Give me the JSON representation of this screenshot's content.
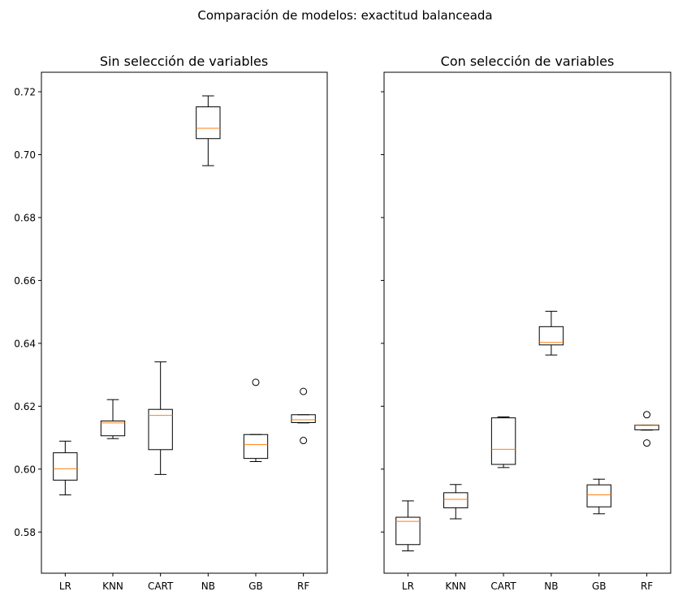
{
  "chart_data": {
    "type": "box",
    "suptitle": "Comparación de modelos: exactitud balanceada",
    "ylim": [
      0.5669,
      0.7262
    ],
    "yticks": [
      0.58,
      0.6,
      0.62,
      0.64,
      0.66,
      0.68,
      0.7,
      0.72
    ],
    "ytick_labels": [
      "0.58",
      "0.60",
      "0.62",
      "0.64",
      "0.66",
      "0.68",
      "0.70",
      "0.72"
    ],
    "sharey": true,
    "grid": false,
    "colors": {
      "box": "#000000",
      "median": "#ff7f0e",
      "flier": "#000000"
    },
    "panels": [
      {
        "title": "Sin selección de variables",
        "categories": [
          "LR",
          "KNN",
          "CART",
          "NB",
          "GB",
          "RF"
        ],
        "boxes": [
          {
            "whislo": 0.5918,
            "q1": 0.5965,
            "med": 0.6001,
            "q3": 0.6052,
            "whishi": 0.6089,
            "fliers": []
          },
          {
            "whislo": 0.6097,
            "q1": 0.6106,
            "med": 0.6147,
            "q3": 0.6153,
            "whishi": 0.6221,
            "fliers": []
          },
          {
            "whislo": 0.5983,
            "q1": 0.6062,
            "med": 0.6171,
            "q3": 0.619,
            "whishi": 0.6341,
            "fliers": []
          },
          {
            "whislo": 0.6965,
            "q1": 0.7051,
            "med": 0.7084,
            "q3": 0.7152,
            "whishi": 0.7187,
            "fliers": []
          },
          {
            "whislo": 0.6024,
            "q1": 0.6034,
            "med": 0.6078,
            "q3": 0.611,
            "whishi": 0.611,
            "fliers": [
              0.6276
            ]
          },
          {
            "whislo": 0.6147,
            "q1": 0.6148,
            "med": 0.6157,
            "q3": 0.6173,
            "whishi": 0.6173,
            "fliers": [
              0.6247,
              0.6091
            ]
          }
        ]
      },
      {
        "title": "Con selección de variables",
        "categories": [
          "LR",
          "KNN",
          "CART",
          "NB",
          "GB",
          "RF"
        ],
        "boxes": [
          {
            "whislo": 0.574,
            "q1": 0.576,
            "med": 0.5834,
            "q3": 0.5847,
            "whishi": 0.5899,
            "fliers": []
          },
          {
            "whislo": 0.5842,
            "q1": 0.5877,
            "med": 0.5904,
            "q3": 0.5925,
            "whishi": 0.5951,
            "fliers": []
          },
          {
            "whislo": 0.6005,
            "q1": 0.6015,
            "med": 0.6063,
            "q3": 0.6163,
            "whishi": 0.6166,
            "fliers": []
          },
          {
            "whislo": 0.6363,
            "q1": 0.6395,
            "med": 0.6403,
            "q3": 0.6453,
            "whishi": 0.6502,
            "fliers": []
          },
          {
            "whislo": 0.5858,
            "q1": 0.588,
            "med": 0.5918,
            "q3": 0.595,
            "whishi": 0.5968,
            "fliers": []
          },
          {
            "whislo": 0.6124,
            "q1": 0.6125,
            "med": 0.6139,
            "q3": 0.614,
            "whishi": 0.614,
            "fliers": [
              0.6173,
              0.6083
            ]
          }
        ]
      }
    ]
  }
}
